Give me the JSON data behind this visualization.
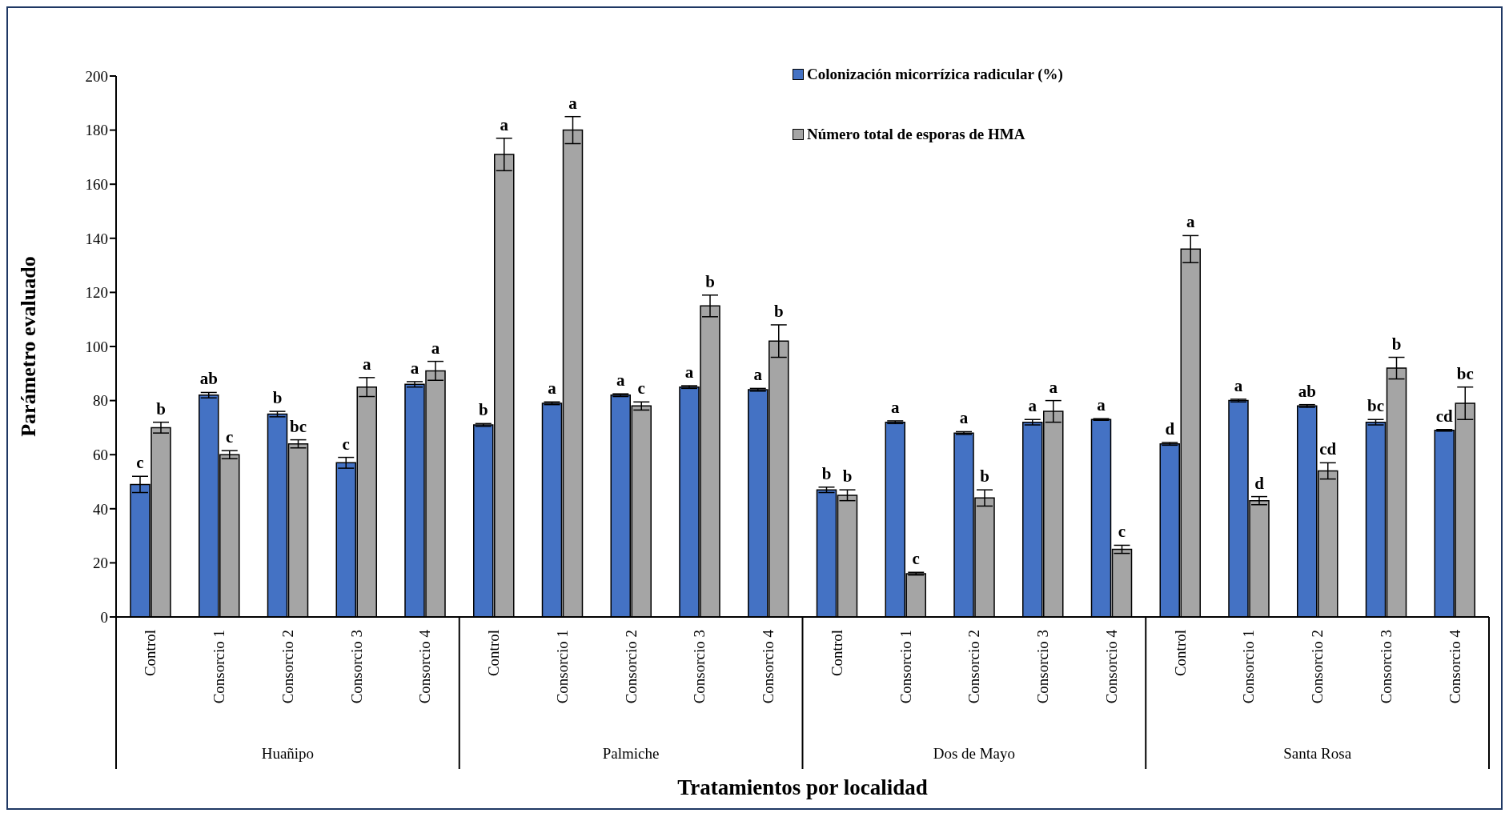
{
  "chart_data": {
    "type": "bar",
    "xlabel": "Tratamientos por localidad",
    "ylabel": "Parámetro evaluado",
    "categories": [
      "Control",
      "Consorcio 1",
      "Consorcio 2",
      "Consorcio 3",
      "Consorcio 4",
      "Control",
      "Consorcio 1",
      "Consorcio 2",
      "Consorcio 3",
      "Consorcio 4",
      "Control",
      "Consorcio 1",
      "Consorcio 2",
      "Consorcio 3",
      "Consorcio 4",
      "Control",
      "Consorcio 1",
      "Consorcio 2",
      "Consorcio 3",
      "Consorcio 4"
    ],
    "annotations": [
      "Huañipo",
      "Palmiche",
      "Dos de Mayo",
      "Santa Rosa"
    ],
    "series": [
      {
        "name": "Colonización micorrízica radicular (%)",
        "color": "#4472c4",
        "values": [
          49,
          82,
          75,
          57,
          86,
          71,
          79,
          82,
          85,
          84,
          47,
          72,
          68,
          72,
          73,
          64,
          80,
          78,
          72,
          69
        ],
        "errors": [
          3,
          1,
          1,
          2,
          1,
          0.5,
          0.5,
          0.5,
          0.5,
          0.5,
          1,
          0.5,
          0.5,
          1,
          0.3,
          0.5,
          0.5,
          0.5,
          1,
          0.3
        ],
        "value_labels": [
          "c",
          "ab",
          "b",
          "c",
          "a",
          "b",
          "a",
          "a",
          "a",
          "a",
          "b",
          "a",
          "a",
          "a",
          "a",
          "d",
          "a",
          "ab",
          "bc",
          "cd"
        ]
      },
      {
        "name": "Número total de esporas de HMA",
        "color": "#a5a5a5",
        "values": [
          70,
          60,
          64,
          85,
          91,
          171,
          180,
          78,
          115,
          102,
          45,
          16,
          44,
          76,
          25,
          136,
          43,
          54,
          92,
          79
        ],
        "errors": [
          2,
          1.5,
          1.5,
          3.5,
          3.5,
          6,
          5,
          1.5,
          4,
          6,
          2,
          0.5,
          3,
          4,
          1.5,
          5,
          1.5,
          3,
          4,
          6
        ],
        "value_labels": [
          "b",
          "c",
          "bc",
          "a",
          "a",
          "a",
          "a",
          "c",
          "b",
          "b",
          "b",
          "c",
          "b",
          "a",
          "c",
          "a",
          "d",
          "cd",
          "b",
          "bc"
        ]
      }
    ],
    "ylim": [
      0,
      200
    ],
    "yticks": [
      0,
      20,
      40,
      60,
      80,
      100,
      120,
      140,
      160,
      180,
      200
    ],
    "grid": false,
    "legend": "top right"
  }
}
